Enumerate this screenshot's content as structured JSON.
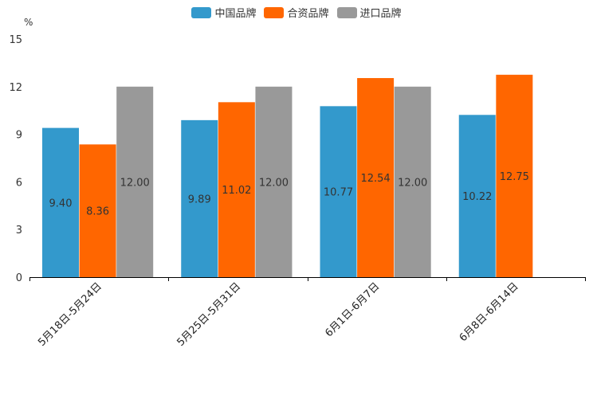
{
  "chart_data": {
    "type": "bar",
    "title": "",
    "ylabel": "%",
    "xlabel": "",
    "ylim": [
      0,
      15
    ],
    "yticks": [
      0,
      3,
      6,
      9,
      12,
      15
    ],
    "categories": [
      "5月18日-5月24日",
      "5月25日-5月31日",
      "6月1日-6月7日",
      "6月8日-6月14日"
    ],
    "series": [
      {
        "name": "中国品牌",
        "color": "#3399cc",
        "values": [
          9.4,
          9.89,
          10.77,
          10.22
        ],
        "labels": [
          "9.40",
          "9.89",
          "10.77",
          "10.22"
        ]
      },
      {
        "name": "合资品牌",
        "color": "#ff6600",
        "values": [
          8.36,
          11.02,
          12.54,
          12.75
        ],
        "labels": [
          "8.36",
          "11.02",
          "12.54",
          "12.75"
        ]
      },
      {
        "name": "进口品牌",
        "color": "#999999",
        "values": [
          12.0,
          12.0,
          12.0,
          null
        ],
        "labels": [
          "12.00",
          "12.00",
          "12.00",
          null
        ]
      }
    ],
    "legend_position": "top-center"
  }
}
